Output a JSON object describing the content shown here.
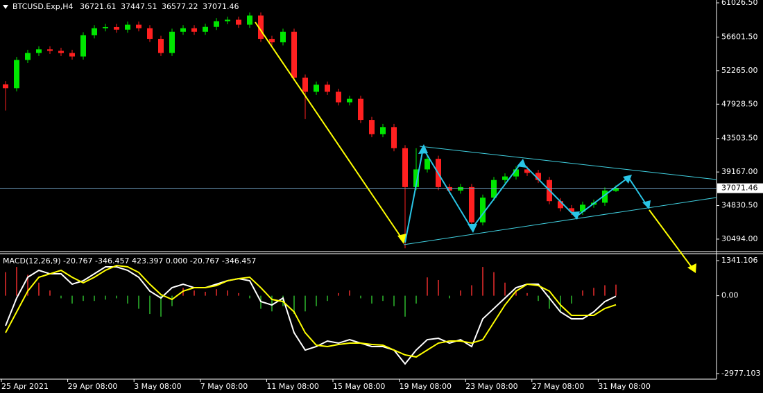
{
  "chart_data": [
    {
      "type": "candlestick",
      "title": "BTCUSD.Exp,H4",
      "open": [
        50500,
        49990,
        53640,
        54550,
        55010,
        54820,
        54550,
        54090,
        56830,
        57740,
        57900,
        57560,
        58200,
        57740,
        56370,
        54550,
        57290,
        57740,
        57290,
        57920,
        58650,
        58840,
        58200,
        59380,
        56370,
        55920,
        57290,
        51360,
        49530,
        50450,
        49530,
        48170,
        48620,
        45890,
        44060,
        44970,
        42240,
        37220,
        39500,
        40870,
        37220,
        36770,
        37220,
        32660,
        35850,
        38130,
        38590,
        39500,
        39050,
        38130,
        35400,
        34490,
        34030,
        34940,
        35200,
        36721.61
      ],
      "high": [
        50900,
        54040,
        54950,
        55410,
        55410,
        55220,
        54950,
        57230,
        58140,
        58300,
        58300,
        58600,
        58600,
        58140,
        56770,
        57690,
        58140,
        58140,
        58320,
        59050,
        59240,
        59240,
        59780,
        59780,
        56770,
        57690,
        57690,
        51760,
        50850,
        50850,
        49930,
        49020,
        49020,
        46290,
        45370,
        45370,
        42640,
        42240,
        41270,
        41270,
        37620,
        37620,
        37620,
        36250,
        38530,
        38990,
        39900,
        39900,
        39450,
        38530,
        35800,
        34890,
        35340,
        35600,
        37170,
        37447.51
      ],
      "low": [
        47100,
        49590,
        53240,
        54150,
        54420,
        54150,
        53690,
        53690,
        56430,
        57340,
        57160,
        57160,
        57340,
        55970,
        54150,
        54150,
        56890,
        56890,
        56890,
        57520,
        58250,
        57800,
        57800,
        55970,
        55520,
        55520,
        50960,
        46000,
        49130,
        49130,
        47770,
        47770,
        45490,
        43660,
        43660,
        41840,
        29300,
        36820,
        39100,
        36820,
        36370,
        36370,
        32260,
        32260,
        35450,
        37730,
        38190,
        38650,
        37730,
        35000,
        34090,
        33630,
        33630,
        34540,
        34800,
        36577.22
      ],
      "close": [
        49990,
        53640,
        54550,
        55010,
        54820,
        54550,
        54090,
        56830,
        57740,
        57900,
        57560,
        58200,
        57740,
        56370,
        54550,
        57290,
        57740,
        57290,
        57920,
        58650,
        58840,
        58200,
        59380,
        56370,
        55920,
        57290,
        51360,
        49530,
        50450,
        49530,
        48170,
        48620,
        45890,
        44060,
        44970,
        42240,
        37220,
        39500,
        40870,
        37220,
        36770,
        37220,
        32660,
        35850,
        38130,
        38590,
        39500,
        39050,
        38130,
        35400,
        34490,
        34030,
        34940,
        35200,
        36770,
        37071.46
      ],
      "up_color": "#00e600",
      "down_color": "#ff2020",
      "ylim": [
        28880,
        61390
      ],
      "yticks": [
        {
          "value": 61026.5,
          "label": "61026.50"
        },
        {
          "value": 56601.5,
          "label": "56601.50"
        },
        {
          "value": 52265,
          "label": "52265.00"
        },
        {
          "value": 47928.5,
          "label": "47928.50"
        },
        {
          "value": 43503.5,
          "label": "43503.50"
        },
        {
          "value": 39167,
          "label": "39167.00"
        },
        {
          "value": 34830.5,
          "label": "34830.50"
        },
        {
          "value": 30494,
          "label": "30494.00"
        }
      ],
      "x_labels": [
        "25 Apr 2021",
        "29 Apr 08:00",
        "3 May 08:00",
        "7 May 08:00",
        "11 May 08:00",
        "15 May 08:00",
        "19 May 08:00",
        "23 May 08:00",
        "27 May 08:00",
        "31 May 08:00"
      ]
    },
    {
      "type": "macd",
      "title": "MACD(12,26,9) -20.767 -346.457 423.397 0.000 -20.767 -346.457",
      "series": [
        {
          "color": "#ffffff",
          "values": [
            -1150,
            -90,
            705,
            970,
            837,
            837,
            440,
            572,
            837,
            1102,
            1102,
            970,
            705,
            175,
            -90,
            307,
            440,
            307,
            307,
            440,
            572,
            652,
            572,
            -223,
            -355,
            -90,
            -1415,
            -2077,
            -1944,
            -1733,
            -1812,
            -1680,
            -1812,
            -1944,
            -1944,
            -2077,
            -2607,
            -2077,
            -1680,
            -1627,
            -1812,
            -1680,
            -1944,
            -885,
            -488,
            -90,
            307,
            440,
            440,
            -90,
            -620,
            -885,
            -885,
            -620,
            -223,
            -20.767
          ]
        },
        {
          "color": "#ffff00",
          "values": [
            -1415,
            -620,
            175,
            705,
            837,
            970,
            705,
            493,
            705,
            970,
            1155,
            1102,
            890,
            440,
            42,
            -143,
            175,
            307,
            307,
            387,
            572,
            652,
            705,
            307,
            -143,
            -223,
            -620,
            -1415,
            -1891,
            -1944,
            -1865,
            -1812,
            -1812,
            -1865,
            -1891,
            -2077,
            -2262,
            -2342,
            -2077,
            -1812,
            -1733,
            -1733,
            -1812,
            -1680,
            -1017,
            -355,
            175,
            440,
            387,
            175,
            -355,
            -752,
            -752,
            -752,
            -488,
            -346.457
          ]
        }
      ],
      "histogram": {
        "up_color": "#b22222",
        "down_color": "#228b22",
        "values": [
          900,
          1100,
          800,
          500,
          200,
          -100,
          -300,
          -200,
          -200,
          -150,
          -100,
          -300,
          -500,
          -700,
          -800,
          -400,
          300,
          200,
          150,
          250,
          200,
          100,
          -100,
          -500,
          -600,
          -400,
          -700,
          -600,
          -400,
          -200,
          100,
          200,
          -100,
          -300,
          -200,
          -400,
          -800,
          -300,
          700,
          600,
          -100,
          200,
          400,
          1100,
          900,
          500,
          200,
          100,
          -200,
          -500,
          -600,
          -300,
          200,
          300,
          400,
          423.397
        ]
      },
      "ylim": [
        -3189,
        1606
      ],
      "yticks": [
        1341.106,
        {
          "value": 0,
          "label": "0.00"
        },
        -2977.103
      ]
    }
  ]
}
